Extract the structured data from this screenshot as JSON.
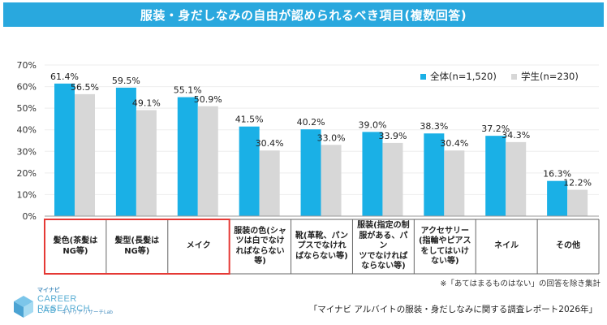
{
  "title": "服装・身だしなみの自由が認められるべき項目(複数回答)",
  "colors": {
    "series1": "#1ab0e6",
    "series2": "#d7d7d7",
    "highlight": "#e53935",
    "title_bg": "#29a8de"
  },
  "chart_data": {
    "type": "bar",
    "title": "服装・身だしなみの自由が認められるべき項目(複数回答)",
    "ylim": [
      0,
      70
    ],
    "yticks": [
      "0%",
      "10%",
      "20%",
      "30%",
      "40%",
      "50%",
      "60%",
      "70%"
    ],
    "legend_position": "top-right",
    "categories": [
      "髪色(茶髪はNG等)",
      "髪型(長髪はNG等)",
      "メイク",
      "服装の色(シャツは白でなければならない等)",
      "靴(革靴、パンプスでなければならない等)",
      "服装(指定の制服がある、パンツでなければならない等)",
      "アクセサリー(指輪やピアスをしてはいけない等)",
      "ネイル",
      "その他"
    ],
    "series": [
      {
        "name": "全体(n=1,520)",
        "values": [
          61.4,
          59.5,
          55.1,
          41.5,
          40.2,
          39.0,
          38.3,
          37.2,
          16.3
        ],
        "labels": [
          "61.4%",
          "59.5%",
          "55.1%",
          "41.5%",
          "40.2%",
          "39.0%",
          "38.3%",
          "37.2%",
          "16.3%"
        ]
      },
      {
        "name": "学生(n=230)",
        "values": [
          56.5,
          49.1,
          50.9,
          30.4,
          33.0,
          33.9,
          30.4,
          34.3,
          12.2
        ],
        "labels": [
          "56.5%",
          "49.1%",
          "50.9%",
          "30.4%",
          "33.0%",
          "33.9%",
          "30.4%",
          "34.3%",
          "12.2%"
        ]
      }
    ],
    "highlighted_categories": [
      0,
      1,
      2
    ]
  },
  "category_lines": [
    [
      "髪色(茶髪は",
      "NG等)"
    ],
    [
      "髪型(長髪は",
      "NG等)"
    ],
    [
      "メイク"
    ],
    [
      "服装の色(シャ",
      "ツは白でなけ",
      "ればならない",
      "等)"
    ],
    [
      "靴(革靴、パン",
      "プスでなけれ",
      "ばならない等)"
    ],
    [
      "服装(指定の制",
      "服がある、パン",
      "ツでなければ",
      "ならない等)"
    ],
    [
      "アクセサリー",
      "(指輪やピアス",
      "をしてはいけ",
      "ない等)"
    ],
    [
      "ネイル"
    ],
    [
      "その他"
    ]
  ],
  "footnote": "※「あてはまるものはない」の回答を除き集計",
  "source": "「マイナビ アルバイトの服装・身だしなみに関する調査レポート2026年」",
  "logo": {
    "top": "マイナビ",
    "line1": "CAREER RESEARCH",
    "line2": "LAB",
    "sub": "キャリアリサーチLab"
  }
}
